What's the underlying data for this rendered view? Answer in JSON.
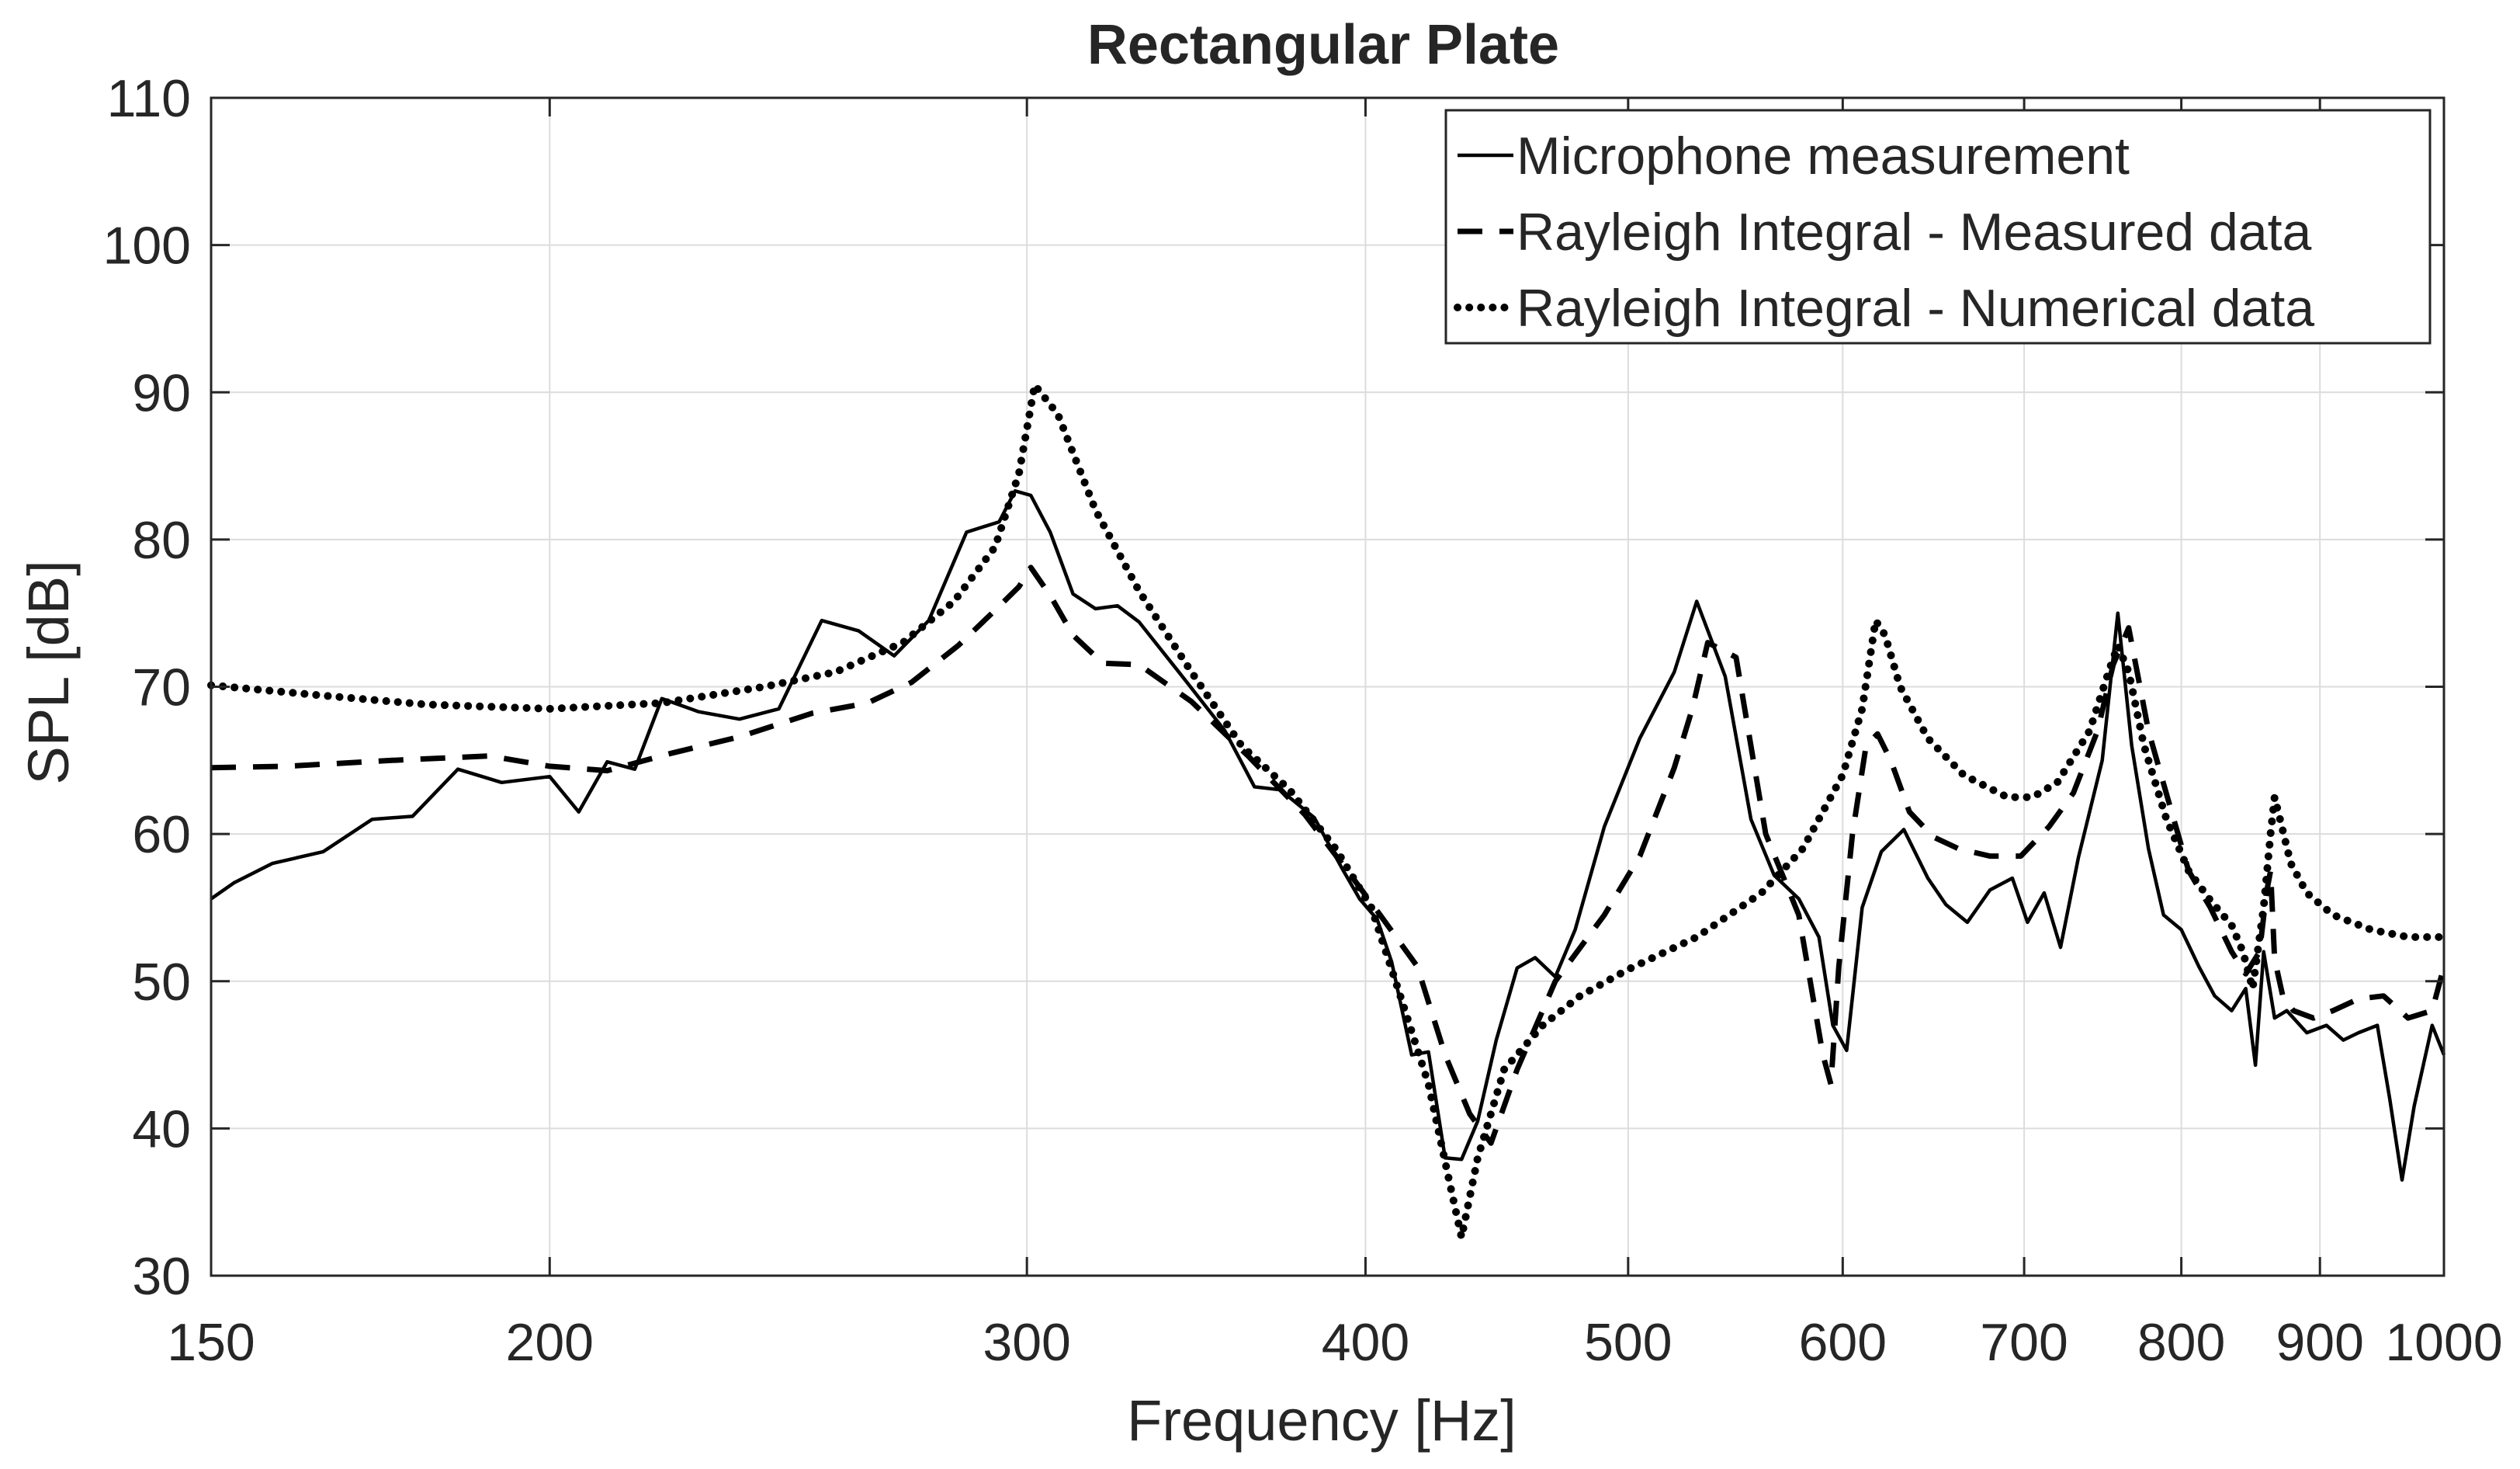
{
  "chart_data": {
    "type": "line",
    "title": "Rectangular Plate",
    "xlabel": "Frequency [Hz]",
    "ylabel": "SPL [dB]",
    "xscale": "log",
    "xlim": [
      150,
      1000
    ],
    "ylim": [
      30,
      110
    ],
    "grid": true,
    "legend_position": "top-right",
    "xticks": [
      150,
      200,
      300,
      400,
      500,
      600,
      700,
      800,
      900,
      1000
    ],
    "xtick_labels": [
      "150",
      "200",
      "300",
      "400",
      "500",
      "600",
      "700",
      "800",
      "900",
      "1000"
    ],
    "yticks": [
      30,
      40,
      50,
      60,
      70,
      80,
      90,
      100,
      110
    ],
    "ytick_labels": [
      "30",
      "40",
      "50",
      "60",
      "70",
      "80",
      "90",
      "100",
      "110"
    ],
    "series": [
      {
        "name": "Microphone measurement",
        "style": "solid",
        "x": [
          150,
          153,
          158,
          165,
          172,
          178,
          185,
          192,
          200,
          205,
          210,
          215,
          220,
          227,
          235,
          243,
          252,
          260,
          268,
          276,
          285,
          293,
          297,
          301,
          306,
          312,
          318,
          324,
          330,
          342,
          355,
          364,
          372,
          383,
          392,
          398,
          404,
          409,
          416,
          422,
          428,
          434,
          440,
          447,
          455,
          462,
          470,
          478,
          490,
          505,
          520,
          530,
          543,
          555,
          566,
          578,
          588,
          595,
          602,
          610,
          620,
          632,
          645,
          655,
          667,
          680,
          693,
          702,
          712,
          722,
          733,
          748,
          758,
          767,
          778,
          788,
          800,
          812,
          823,
          835,
          845,
          852,
          858,
          866,
          875,
          890,
          905,
          918,
          930,
          945,
          955,
          965,
          975,
          990,
          1000
        ],
        "values": [
          55.6,
          56.7,
          58.0,
          58.8,
          61.0,
          61.2,
          64.4,
          63.5,
          63.9,
          61.5,
          64.9,
          64.4,
          69.2,
          68.3,
          67.8,
          68.5,
          74.5,
          73.8,
          72.1,
          74.5,
          80.5,
          81.2,
          83.3,
          83.0,
          80.5,
          76.3,
          75.3,
          75.5,
          74.4,
          70.8,
          67.0,
          63.2,
          63.0,
          61.1,
          57.7,
          55.6,
          54.2,
          51.3,
          45.0,
          45.2,
          38.0,
          37.9,
          40.5,
          46.0,
          50.9,
          51.6,
          50.3,
          53.5,
          60.5,
          66.5,
          71.0,
          75.8,
          70.7,
          61.0,
          57.2,
          55.6,
          53.0,
          47.0,
          45.3,
          55.0,
          58.8,
          60.3,
          57.0,
          55.2,
          54.0,
          56.2,
          57.0,
          54.0,
          56.0,
          52.3,
          58.4,
          65.0,
          75.0,
          66.0,
          59.0,
          54.5,
          53.5,
          51.0,
          49.0,
          48.0,
          49.5,
          44.3,
          52.0,
          47.5,
          48.0,
          46.5,
          47.0,
          46.0,
          46.5,
          47.0,
          42.0,
          36.5,
          41.5,
          47.0,
          45.0
        ]
      },
      {
        "name": "Rayleigh Integral - Measured data",
        "style": "dashed",
        "x": [
          150,
          160,
          175,
          190,
          200,
          210,
          222,
          235,
          250,
          262,
          272,
          283,
          292,
          298,
          301,
          306,
          312,
          320,
          330,
          345,
          362,
          380,
          395,
          405,
          418,
          428,
          437,
          445,
          455,
          470,
          490,
          505,
          520,
          528,
          535,
          548,
          562,
          578,
          590,
          594,
          598,
          605,
          612,
          618,
          625,
          635,
          648,
          662,
          680,
          698,
          715,
          730,
          745,
          755,
          765,
          778,
          792,
          805,
          820,
          835,
          845,
          855,
          860,
          863,
          866,
          872,
          880,
          895,
          910,
          930,
          950,
          970,
          990,
          1000
        ],
        "values": [
          64.5,
          64.6,
          65.0,
          65.3,
          64.6,
          64.3,
          65.5,
          66.6,
          68.2,
          68.9,
          70.3,
          72.8,
          75.2,
          76.8,
          78.1,
          76.2,
          73.5,
          71.6,
          71.5,
          69.0,
          65.3,
          61.3,
          57.2,
          54.5,
          51.0,
          45.0,
          41.0,
          39.0,
          44.0,
          50.0,
          54.5,
          58.5,
          64.5,
          68.5,
          73.0,
          72.0,
          60.0,
          54.5,
          45.0,
          43.0,
          51.0,
          60.0,
          66.0,
          66.8,
          65.0,
          61.5,
          59.8,
          59.0,
          58.5,
          58.5,
          60.5,
          62.8,
          67.0,
          71.5,
          74.0,
          67.0,
          62.0,
          57.5,
          55.0,
          52.0,
          50.5,
          52.0,
          56.0,
          57.5,
          51.5,
          49.0,
          48.0,
          47.5,
          48.0,
          48.8,
          49.0,
          47.5,
          48.0,
          51.0
        ]
      },
      {
        "name": "Rayleigh Integral - Numerical data",
        "style": "dotted",
        "x": [
          150,
          165,
          180,
          200,
          220,
          240,
          255,
          270,
          282,
          292,
          298,
          302,
          308,
          318,
          330,
          345,
          360,
          375,
          390,
          402,
          412,
          422,
          430,
          434,
          440,
          450,
          465,
          480,
          500,
          530,
          560,
          580,
          600,
          610,
          617,
          622,
          630,
          645,
          665,
          690,
          705,
          720,
          740,
          752,
          758,
          765,
          775,
          790,
          805,
          820,
          835,
          843,
          850,
          858,
          863,
          866,
          870,
          878,
          890,
          910,
          940,
          970,
          1000
        ],
        "values": [
          70.1,
          69.4,
          68.8,
          68.5,
          68.9,
          70.0,
          71.0,
          73.0,
          75.8,
          79.5,
          84.5,
          90.5,
          88.5,
          82.0,
          76.5,
          71.0,
          66.0,
          63.0,
          59.0,
          55.0,
          49.0,
          43.0,
          36.0,
          32.6,
          38.0,
          44.0,
          47.0,
          49.0,
          50.8,
          53.0,
          56.0,
          59.0,
          64.0,
          68.5,
          74.5,
          73.5,
          70.0,
          66.5,
          64.0,
          62.5,
          62.5,
          63.5,
          67.0,
          71.0,
          72.8,
          71.0,
          66.0,
          61.0,
          57.5,
          55.5,
          53.8,
          52.0,
          49.5,
          55.0,
          60.0,
          62.5,
          61.0,
          58.0,
          56.0,
          54.5,
          53.5,
          53.0,
          53.0
        ]
      }
    ]
  }
}
